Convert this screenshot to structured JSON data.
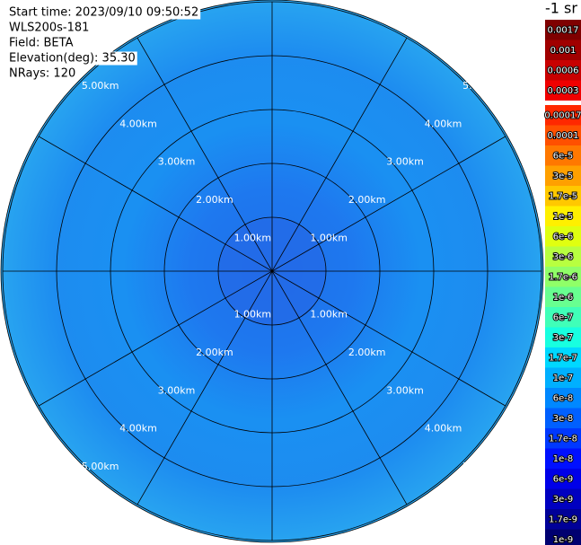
{
  "chart_data": {
    "type": "polar",
    "annotations": [
      "Start time: 2023/09/10 09:50:52",
      "WLS200s-181",
      "Field: BETA",
      "Elevation(deg): 35.30",
      "NRays: 120"
    ],
    "rlim": [
      0,
      5
    ],
    "rticks": [
      {
        "value": 1,
        "label": "1.00km"
      },
      {
        "value": 2,
        "label": "2.00km"
      },
      {
        "value": 3,
        "label": "3.00km"
      },
      {
        "value": 4,
        "label": "4.00km"
      },
      {
        "value": 5,
        "label": "5.00km"
      }
    ],
    "colorbar_title": "-1 sr",
    "colorbar_ticks": [
      0.0017,
      0.001,
      0.0006,
      0.0003,
      0.00017,
      0.0001,
      {
        "value": 6e-05,
        "label": "6e-5"
      },
      {
        "value": 3e-05,
        "label": "3e-5"
      },
      {
        "value": 1.7e-05,
        "label": "1.7e-5"
      },
      {
        "value": 1e-05,
        "label": "1e-5"
      },
      {
        "value": 6e-06,
        "label": "6e-6"
      },
      {
        "value": 3e-06,
        "label": "3e-6"
      },
      {
        "value": 1.7e-06,
        "label": "1.7e-6"
      },
      {
        "value": 1e-06,
        "label": "1e-6"
      },
      {
        "value": 6e-07,
        "label": "6e-7"
      },
      {
        "value": 3e-07,
        "label": "3e-7"
      },
      {
        "value": 1.7e-07,
        "label": "1.7e-7"
      },
      {
        "value": 1e-07,
        "label": "1e-7"
      },
      {
        "value": 6e-08,
        "label": "6e-8"
      },
      {
        "value": 3e-08,
        "label": "3e-8"
      },
      {
        "value": 1.7e-08,
        "label": "1.7e-8"
      },
      {
        "value": 1e-08,
        "label": "1e-8"
      },
      {
        "value": 6e-09,
        "label": "6e-9"
      },
      {
        "value": 3e-09,
        "label": "3e-9"
      },
      {
        "value": 1.7e-09,
        "label": "1.7e-9"
      },
      {
        "value": 1e-09,
        "label": "1e-9"
      }
    ],
    "colorbar_colors": [
      "#7f0000",
      "#a00000",
      "#c80000",
      "#f00000",
      "#ff2800",
      "#ff5000",
      "#ff7800",
      "#ffa000",
      "#ffc800",
      "#fff000",
      "#e0ff10",
      "#b8ff40",
      "#90ff68",
      "#68ff90",
      "#40ffb8",
      "#18ffe0",
      "#00d8ff",
      "#00b0ff",
      "#0088ff",
      "#0060ff",
      "#0038ff",
      "#0010ff",
      "#0000e8",
      "#0000c0",
      "#000098",
      "#000070"
    ]
  }
}
